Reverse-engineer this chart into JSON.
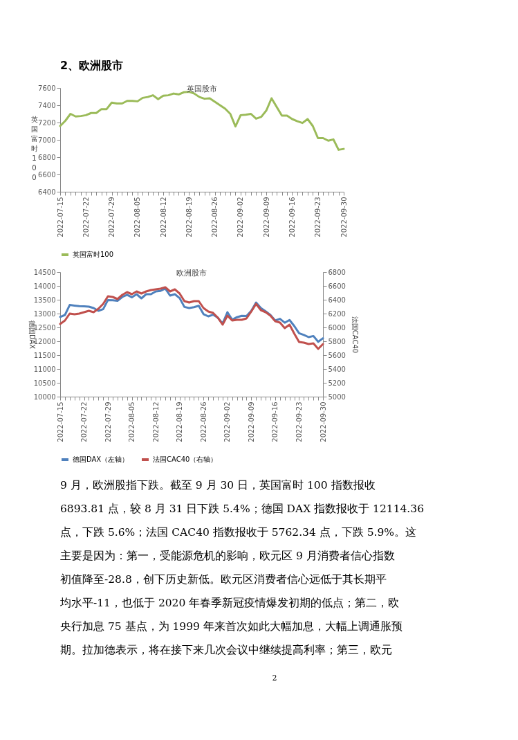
{
  "chart_data": [
    {
      "type": "line",
      "title": "英国股市",
      "ylabel": "英国富时100",
      "annotations": [
        "2、欧洲股市"
      ],
      "categories": [
        "2022-07-15",
        null,
        null,
        null,
        null,
        "2022-07-22",
        null,
        null,
        null,
        null,
        "2022-07-29",
        null,
        null,
        null,
        null,
        "2022-08-05",
        null,
        null,
        null,
        null,
        "2022-08-12",
        null,
        null,
        null,
        null,
        "2022-08-19",
        null,
        null,
        null,
        null,
        "2022-08-26",
        null,
        null,
        null,
        null,
        "2022-09-02",
        null,
        null,
        null,
        null,
        "2022-09-09",
        null,
        null,
        null,
        null,
        "2022-09-16",
        null,
        null,
        null,
        null,
        "2022-09-23",
        null,
        null,
        null,
        null,
        "2022-09-30"
      ],
      "series": [
        {
          "name": "英国富时100",
          "color": "#9bbb59",
          "values": [
            7160,
            7220,
            7300,
            7270,
            7275,
            7285,
            7310,
            7310,
            7355,
            7355,
            7430,
            7420,
            7420,
            7450,
            7450,
            7445,
            7485,
            7495,
            7515,
            7470,
            7510,
            7515,
            7535,
            7525,
            7550,
            7555,
            7535,
            7495,
            7475,
            7480,
            7440,
            7400,
            7360,
            7300,
            7155,
            7285,
            7290,
            7300,
            7245,
            7265,
            7340,
            7480,
            7380,
            7280,
            7280,
            7240,
            7215,
            7195,
            7240,
            7160,
            7020,
            7020,
            6990,
            7005,
            6885,
            6895
          ]
        }
      ],
      "ylim": [
        6400,
        7600
      ],
      "yticks": [
        6400,
        6600,
        6800,
        7000,
        7200,
        7400,
        7600
      ],
      "legend": "bottom"
    },
    {
      "type": "line",
      "title": "欧洲股市",
      "ylabel": "德国DAX",
      "y2label": "法国CAC40",
      "annotations": [
        "9 月，欧洲股指下跌。截至 9 月 30 日，英国富时 100 指数报收",
        "6893.81 点，较 8 月 31 日下跌 5.4%；德国 DAX 指数报收于 12114.36",
        "点，下跌 5.6%；法国 CAC40 指数报收于 5762.34 点，下跌 5.9%。这",
        "主要是因为：第一，受能源危机的影响，欧元区 9 月消费者信心指数",
        "初值降至-28.8，创下历史新低。欧元区消费者信心远低于其长期平",
        "均水平-11，也低于 2020 年春季新冠疫情爆发初期的低点；第二，欧",
        "央行加息 75 基点，为 1999 年来首次如此大幅加息，大幅上调通胀预",
        "期。拉加德表示，将在接下来几次会议中继续提高利率；第三，欧元",
        "2"
      ],
      "categories": [
        "2022-07-15",
        null,
        null,
        null,
        null,
        "2022-07-22",
        null,
        null,
        null,
        null,
        "2022-07-29",
        null,
        null,
        null,
        null,
        "2022-08-05",
        null,
        null,
        null,
        null,
        "2022-08-12",
        null,
        null,
        null,
        null,
        "2022-08-19",
        null,
        null,
        null,
        null,
        "2022-08-26",
        null,
        null,
        null,
        null,
        "2022-09-02",
        null,
        null,
        null,
        null,
        "2022-09-09",
        null,
        null,
        null,
        null,
        "2022-09-16",
        null,
        null,
        null,
        null,
        "2022-09-23",
        null,
        null,
        null,
        null,
        "2022-09-30"
      ],
      "series": [
        {
          "name": "德国DAX（左轴）",
          "color": "#4f81bd",
          "values": [
            12880,
            12950,
            13310,
            13290,
            13270,
            13260,
            13250,
            13200,
            13100,
            13160,
            13490,
            13480,
            13460,
            13600,
            13680,
            13590,
            13700,
            13550,
            13700,
            13700,
            13800,
            13820,
            13900,
            13650,
            13700,
            13560,
            13240,
            13200,
            13230,
            13280,
            12980,
            12900,
            12960,
            12850,
            12640,
            13050,
            12780,
            12870,
            12920,
            12910,
            13100,
            13400,
            13200,
            13080,
            12950,
            12750,
            12810,
            12670,
            12770,
            12550,
            12290,
            12230,
            12150,
            12190,
            11980,
            12110
          ]
        },
        {
          "name": "法国CAC40（右轴）",
          "color": "#c0504d",
          "axis": "y2",
          "values": [
            6050,
            6100,
            6200,
            6190,
            6200,
            6220,
            6240,
            6220,
            6270,
            6340,
            6450,
            6440,
            6410,
            6470,
            6510,
            6480,
            6520,
            6490,
            6520,
            6540,
            6550,
            6560,
            6580,
            6520,
            6550,
            6490,
            6380,
            6360,
            6380,
            6380,
            6280,
            6230,
            6210,
            6140,
            6040,
            6170,
            6100,
            6110,
            6110,
            6130,
            6230,
            6340,
            6250,
            6220,
            6170,
            6090,
            6070,
            5990,
            6040,
            5910,
            5790,
            5780,
            5760,
            5770,
            5690,
            5760
          ]
        }
      ],
      "ylim": [
        10000,
        14500
      ],
      "yticks": [
        10000,
        10500,
        11000,
        11500,
        12000,
        12500,
        13000,
        13500,
        14000,
        14500
      ],
      "y2lim": [
        5000,
        6800
      ],
      "y2ticks": [
        5000,
        5200,
        5400,
        5600,
        5800,
        6000,
        6200,
        6400,
        6600,
        6800
      ],
      "legend": "bottom"
    }
  ]
}
